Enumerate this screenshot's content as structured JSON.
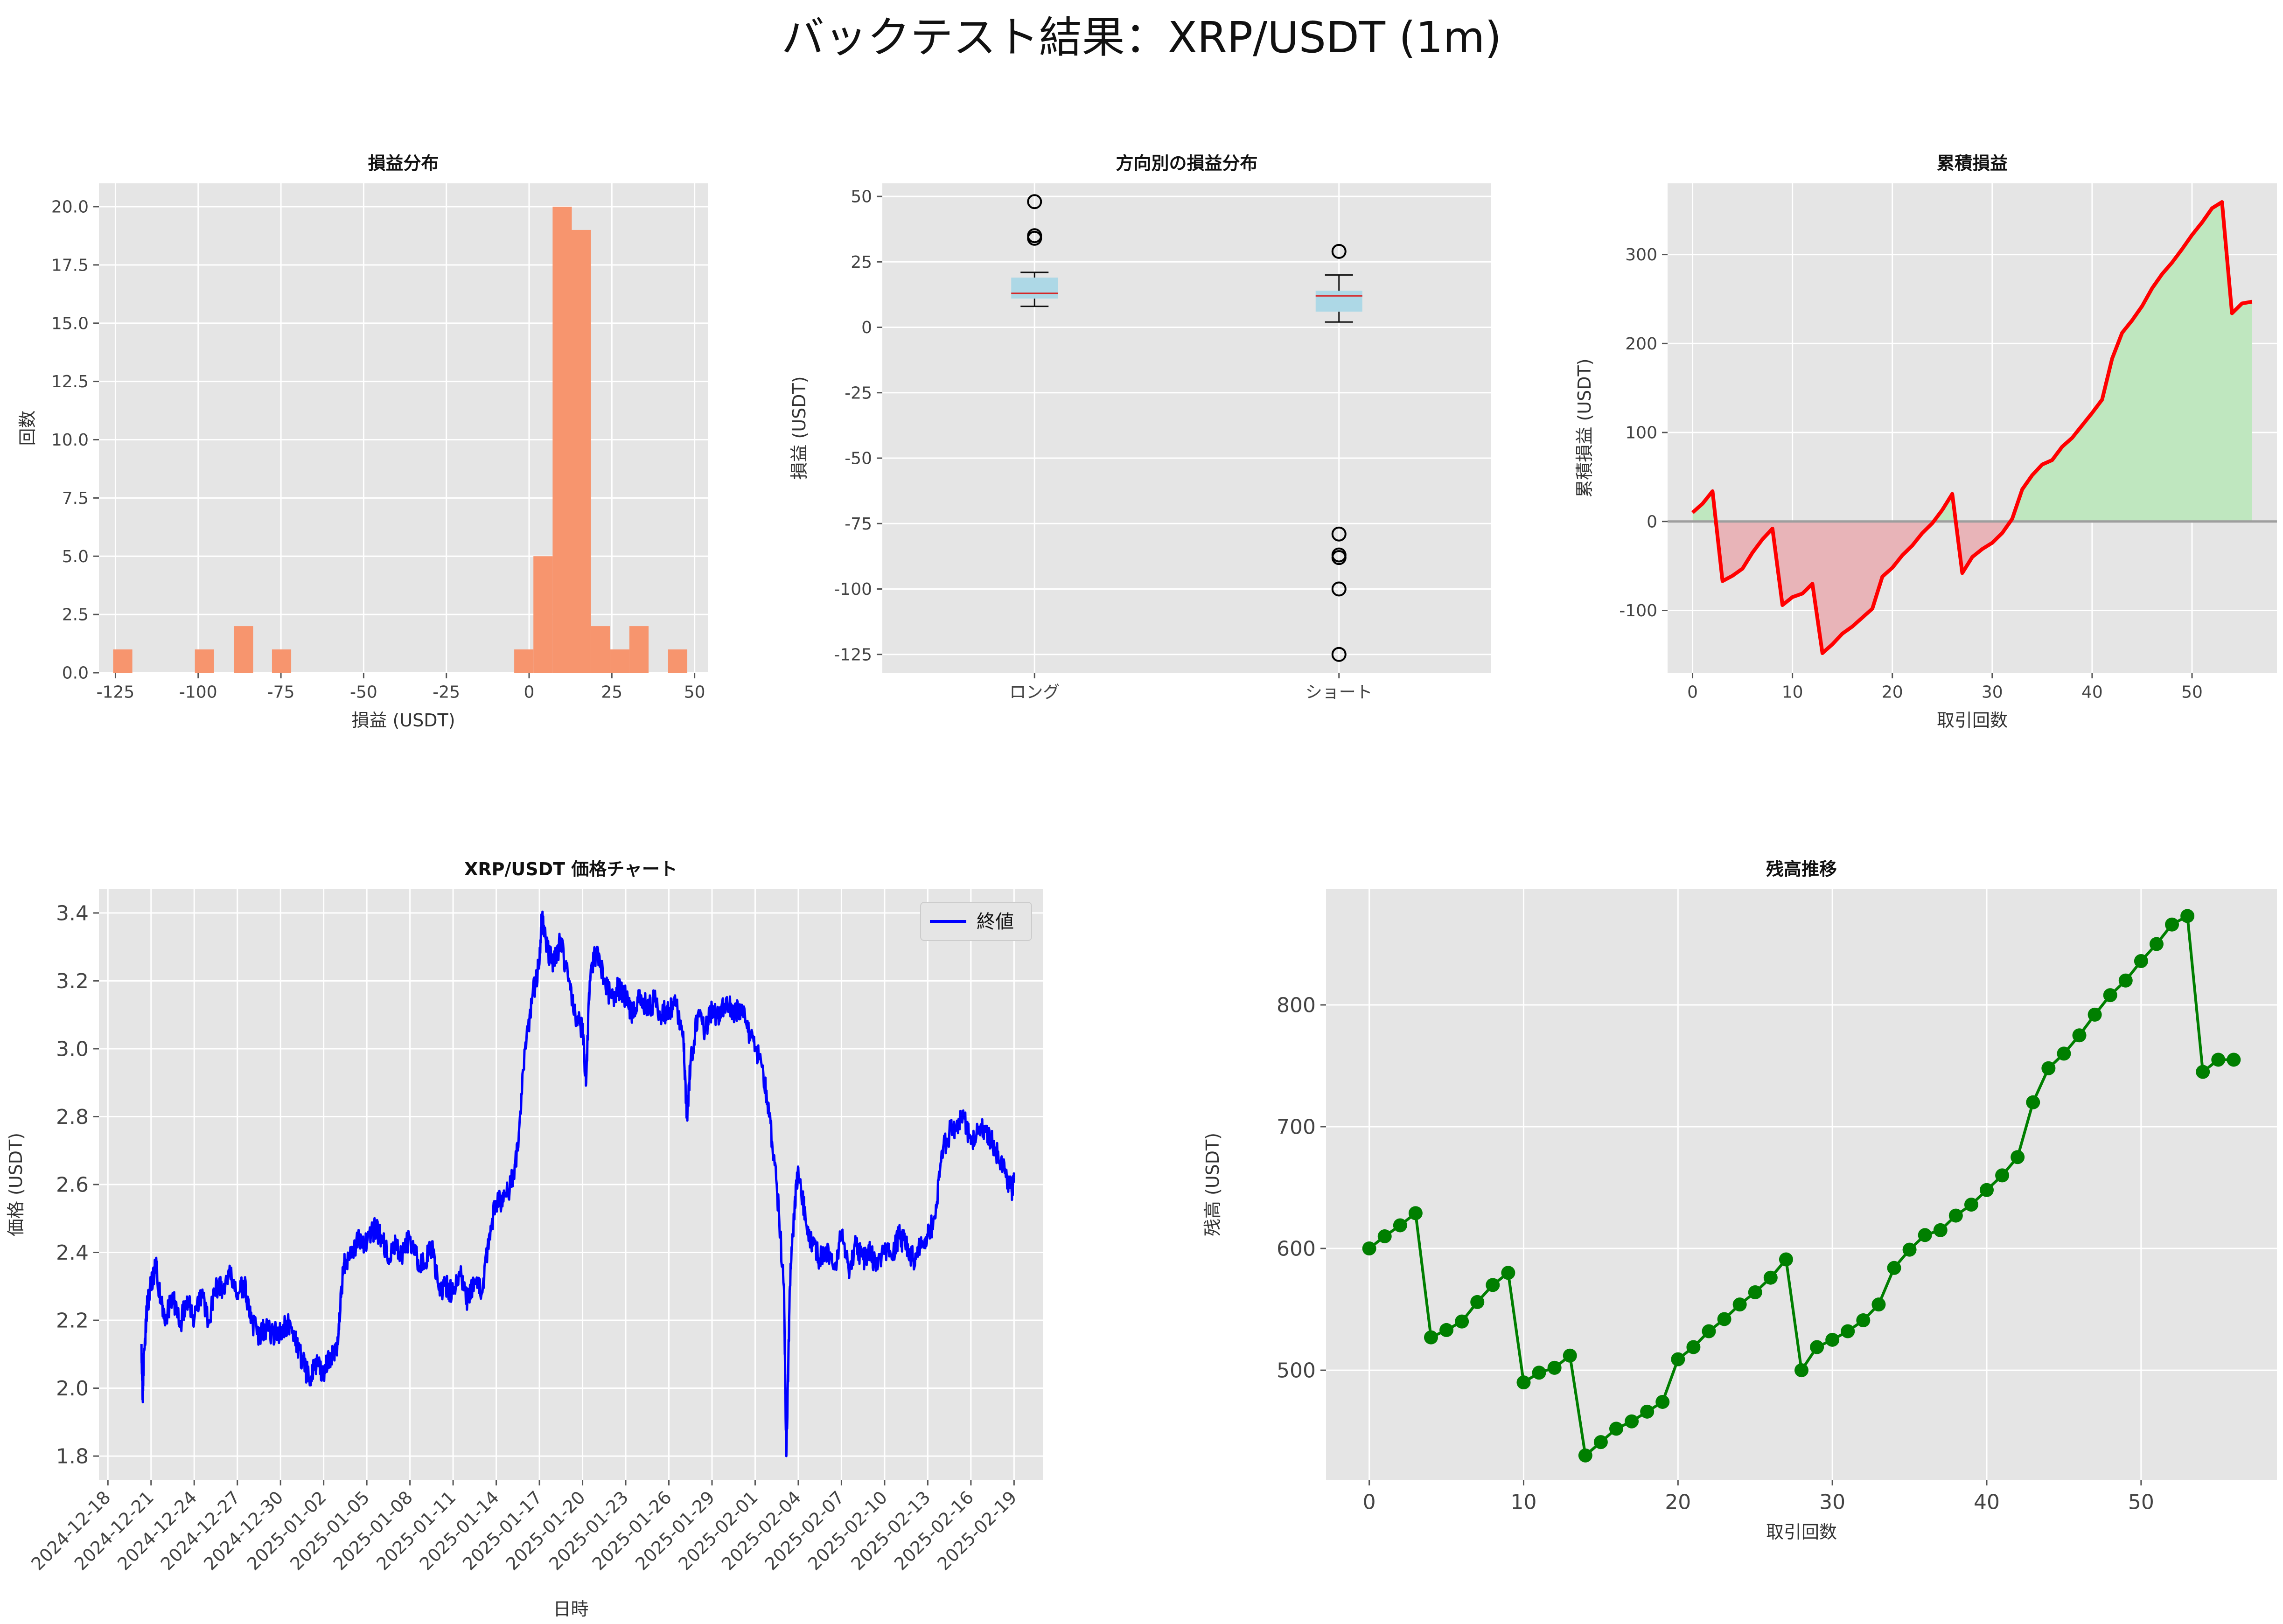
{
  "suptitle": "バックテスト結果：XRP/USDT (1m)",
  "colors": {
    "panel_bg": "#e5e5e5",
    "grid": "#ffffff",
    "hist": "#f7956e",
    "box_fill": "#add8e6",
    "median": "#d62728",
    "cum_line": "#ff0000",
    "fill_neg": "#e8b4b8",
    "fill_pos": "#bfe7bf",
    "zero_line": "#9e9e9e",
    "price_line": "#0000ff",
    "balance": "#007f00"
  },
  "chart_data": [
    {
      "id": "hist",
      "type": "bar",
      "title": "損益分布",
      "xlabel": "損益 (USDT)",
      "ylabel": "回数",
      "xlim": [
        -130,
        54
      ],
      "ylim": [
        0,
        21
      ],
      "xticks": [
        -125,
        -100,
        -75,
        -50,
        -25,
        0,
        25,
        50
      ],
      "yticks": [
        0.0,
        2.5,
        5.0,
        7.5,
        10.0,
        12.5,
        15.0,
        17.5,
        20.0
      ],
      "bins": [
        {
          "x0": -125.7,
          "x1": -119.9,
          "count": 1
        },
        {
          "x0": -101.0,
          "x1": -95.2,
          "count": 1
        },
        {
          "x0": -89.2,
          "x1": -83.4,
          "count": 2
        },
        {
          "x0": -77.7,
          "x1": -71.9,
          "count": 1
        },
        {
          "x0": -4.5,
          "x1": 1.3,
          "count": 1
        },
        {
          "x0": 1.3,
          "x1": 7.1,
          "count": 5
        },
        {
          "x0": 7.1,
          "x1": 12.9,
          "count": 20
        },
        {
          "x0": 12.9,
          "x1": 18.7,
          "count": 19
        },
        {
          "x0": 18.7,
          "x1": 24.5,
          "count": 2
        },
        {
          "x0": 24.5,
          "x1": 30.3,
          "count": 1
        },
        {
          "x0": 30.3,
          "x1": 36.1,
          "count": 2
        },
        {
          "x0": 42.0,
          "x1": 47.8,
          "count": 1
        }
      ]
    },
    {
      "id": "box",
      "type": "box",
      "title": "方向別の損益分布",
      "xlabel": "",
      "ylabel": "損益 (USDT)",
      "ylim": [
        -132,
        55
      ],
      "yticks": [
        -125,
        -100,
        -75,
        -50,
        -25,
        0,
        25,
        50
      ],
      "categories": [
        "ロング",
        "ショート"
      ],
      "boxes": [
        {
          "whislo": 8,
          "q1": 11,
          "med": 13,
          "q3": 19,
          "whishi": 21,
          "fliers": [
            48,
            35,
            34
          ]
        },
        {
          "whislo": 2,
          "q1": 6,
          "med": 12,
          "q3": 14,
          "whishi": 20,
          "fliers": [
            29,
            -79,
            -87,
            -88,
            -100,
            -125
          ]
        }
      ]
    },
    {
      "id": "cum",
      "type": "area",
      "title": "累積損益",
      "xlabel": "取引回数",
      "ylabel": "累積損益 (USDT)",
      "xlim": [
        -2.5,
        58.5
      ],
      "ylim": [
        -170,
        380
      ],
      "xticks": [
        0,
        10,
        20,
        30,
        40,
        50
      ],
      "yticks": [
        -100,
        0,
        100,
        200,
        300
      ],
      "y": [
        10,
        20,
        34,
        -67,
        -61,
        -53,
        -35,
        -20,
        -8,
        -94,
        -85,
        -81,
        -70,
        -148,
        -138,
        -126,
        -118,
        -108,
        -98,
        -62,
        -52,
        -38,
        -27,
        -13,
        -2,
        13,
        31,
        -58,
        -40,
        -31,
        -24,
        -13,
        3,
        36,
        52,
        64,
        69,
        84,
        94,
        108,
        122,
        137,
        183,
        212,
        226,
        242,
        262,
        278,
        291,
        306,
        322,
        336,
        352,
        359,
        234,
        245,
        247
      ]
    },
    {
      "id": "price",
      "type": "line",
      "title": "XRP/USDT 価格チャート",
      "xlabel": "日時",
      "ylabel": "価格 (USDT)",
      "legend": "終値",
      "legend_loc": "upper right",
      "xlim": [
        "2024-12-17T09:00",
        "2025-02-21T00:00"
      ],
      "ylim": [
        1.73,
        3.47
      ],
      "xticks": [
        "2024-12-18",
        "2024-12-21",
        "2024-12-24",
        "2024-12-27",
        "2024-12-30",
        "2025-01-02",
        "2025-01-05",
        "2025-01-08",
        "2025-01-11",
        "2025-01-14",
        "2025-01-17",
        "2025-01-20",
        "2025-01-23",
        "2025-01-26",
        "2025-01-29",
        "2025-02-01",
        "2025-02-04",
        "2025-02-07",
        "2025-02-10",
        "2025-02-13",
        "2025-02-16",
        "2025-02-19"
      ],
      "yticks": [
        1.8,
        2.0,
        2.2,
        2.4,
        2.6,
        2.8,
        3.0,
        3.2,
        3.4
      ],
      "points": [
        [
          "2024-12-20T08:00",
          2.13
        ],
        [
          "2024-12-20T10:00",
          1.97
        ],
        [
          "2024-12-20T12:00",
          2.1
        ],
        [
          "2024-12-20T18:00",
          2.25
        ],
        [
          "2024-12-21T00:00",
          2.3
        ],
        [
          "2024-12-21T08:00",
          2.37
        ],
        [
          "2024-12-21T16:00",
          2.25
        ],
        [
          "2024-12-22T00:00",
          2.2
        ],
        [
          "2024-12-22T12:00",
          2.28
        ],
        [
          "2024-12-23T00:00",
          2.18
        ],
        [
          "2024-12-23T12:00",
          2.27
        ],
        [
          "2024-12-24T00:00",
          2.2
        ],
        [
          "2024-12-24T12:00",
          2.28
        ],
        [
          "2024-12-25T00:00",
          2.2
        ],
        [
          "2024-12-25T12:00",
          2.3
        ],
        [
          "2024-12-26T00:00",
          2.29
        ],
        [
          "2024-12-26T12:00",
          2.33
        ],
        [
          "2024-12-27T00:00",
          2.28
        ],
        [
          "2024-12-27T12:00",
          2.3
        ],
        [
          "2024-12-28T00:00",
          2.2
        ],
        [
          "2024-12-28T12:00",
          2.15
        ],
        [
          "2024-12-29T00:00",
          2.18
        ],
        [
          "2024-12-29T12:00",
          2.16
        ],
        [
          "2024-12-30T00:00",
          2.17
        ],
        [
          "2024-12-30T12:00",
          2.19
        ],
        [
          "2024-12-31T00:00",
          2.15
        ],
        [
          "2024-12-31T12:00",
          2.08
        ],
        [
          "2025-01-01T00:00",
          2.03
        ],
        [
          "2025-01-01T12:00",
          2.07
        ],
        [
          "2025-01-02T00:00",
          2.04
        ],
        [
          "2025-01-02T12:00",
          2.1
        ],
        [
          "2025-01-03T00:00",
          2.13
        ],
        [
          "2025-01-03T06:00",
          2.3
        ],
        [
          "2025-01-03T12:00",
          2.38
        ],
        [
          "2025-01-04T00:00",
          2.4
        ],
        [
          "2025-01-04T12:00",
          2.44
        ],
        [
          "2025-01-05T00:00",
          2.42
        ],
        [
          "2025-01-05T12:00",
          2.47
        ],
        [
          "2025-01-06T00:00",
          2.45
        ],
        [
          "2025-01-06T12:00",
          2.38
        ],
        [
          "2025-01-07T00:00",
          2.42
        ],
        [
          "2025-01-07T12:00",
          2.4
        ],
        [
          "2025-01-08T00:00",
          2.44
        ],
        [
          "2025-01-08T12:00",
          2.38
        ],
        [
          "2025-01-09T00:00",
          2.36
        ],
        [
          "2025-01-09T12:00",
          2.42
        ],
        [
          "2025-01-10T00:00",
          2.29
        ],
        [
          "2025-01-10T12:00",
          2.3
        ],
        [
          "2025-01-11T00:00",
          2.28
        ],
        [
          "2025-01-11T12:00",
          2.33
        ],
        [
          "2025-01-12T00:00",
          2.26
        ],
        [
          "2025-01-12T12:00",
          2.32
        ],
        [
          "2025-01-13T00:00",
          2.28
        ],
        [
          "2025-01-13T12:00",
          2.45
        ],
        [
          "2025-01-14T00:00",
          2.55
        ],
        [
          "2025-01-14T12:00",
          2.55
        ],
        [
          "2025-01-15T00:00",
          2.6
        ],
        [
          "2025-01-15T12:00",
          2.7
        ],
        [
          "2025-01-16T00:00",
          3.0
        ],
        [
          "2025-01-16T12:00",
          3.15
        ],
        [
          "2025-01-17T00:00",
          3.25
        ],
        [
          "2025-01-17T04:00",
          3.39
        ],
        [
          "2025-01-17T12:00",
          3.3
        ],
        [
          "2025-01-18T00:00",
          3.25
        ],
        [
          "2025-01-18T12:00",
          3.32
        ],
        [
          "2025-01-19T00:00",
          3.2
        ],
        [
          "2025-01-19T12:00",
          3.1
        ],
        [
          "2025-01-20T00:00",
          3.05
        ],
        [
          "2025-01-20T06:00",
          2.9
        ],
        [
          "2025-01-20T12:00",
          3.2
        ],
        [
          "2025-01-21T00:00",
          3.3
        ],
        [
          "2025-01-21T12:00",
          3.2
        ],
        [
          "2025-01-22T00:00",
          3.15
        ],
        [
          "2025-01-22T12:00",
          3.18
        ],
        [
          "2025-01-23T00:00",
          3.15
        ],
        [
          "2025-01-23T12:00",
          3.1
        ],
        [
          "2025-01-24T00:00",
          3.15
        ],
        [
          "2025-01-24T12:00",
          3.12
        ],
        [
          "2025-01-25T00:00",
          3.14
        ],
        [
          "2025-01-25T12:00",
          3.1
        ],
        [
          "2025-01-26T00:00",
          3.12
        ],
        [
          "2025-01-26T12:00",
          3.13
        ],
        [
          "2025-01-27T00:00",
          3.05
        ],
        [
          "2025-01-27T06:00",
          2.8
        ],
        [
          "2025-01-27T12:00",
          2.95
        ],
        [
          "2025-01-28T00:00",
          3.1
        ],
        [
          "2025-01-28T12:00",
          3.05
        ],
        [
          "2025-01-29T00:00",
          3.12
        ],
        [
          "2025-01-29T12:00",
          3.08
        ],
        [
          "2025-01-30T00:00",
          3.15
        ],
        [
          "2025-01-30T12:00",
          3.1
        ],
        [
          "2025-01-31T00:00",
          3.12
        ],
        [
          "2025-01-31T12:00",
          3.05
        ],
        [
          "2025-02-01T00:00",
          3.0
        ],
        [
          "2025-02-01T12:00",
          2.95
        ],
        [
          "2025-02-02T00:00",
          2.8
        ],
        [
          "2025-02-02T12:00",
          2.6
        ],
        [
          "2025-02-03T00:00",
          2.3
        ],
        [
          "2025-02-03T04:00",
          1.8
        ],
        [
          "2025-02-03T10:00",
          2.3
        ],
        [
          "2025-02-03T18:00",
          2.55
        ],
        [
          "2025-02-04T00:00",
          2.65
        ],
        [
          "2025-02-04T12:00",
          2.5
        ],
        [
          "2025-02-05T00:00",
          2.42
        ],
        [
          "2025-02-05T12:00",
          2.38
        ],
        [
          "2025-02-06T00:00",
          2.4
        ],
        [
          "2025-02-06T12:00",
          2.35
        ],
        [
          "2025-02-07T00:00",
          2.45
        ],
        [
          "2025-02-07T12:00",
          2.35
        ],
        [
          "2025-02-08T00:00",
          2.42
        ],
        [
          "2025-02-08T12:00",
          2.38
        ],
        [
          "2025-02-09T00:00",
          2.4
        ],
        [
          "2025-02-09T12:00",
          2.35
        ],
        [
          "2025-02-10T00:00",
          2.42
        ],
        [
          "2025-02-10T12:00",
          2.38
        ],
        [
          "2025-02-11T00:00",
          2.45
        ],
        [
          "2025-02-11T12:00",
          2.42
        ],
        [
          "2025-02-12T00:00",
          2.38
        ],
        [
          "2025-02-12T12:00",
          2.42
        ],
        [
          "2025-02-13T00:00",
          2.45
        ],
        [
          "2025-02-13T12:00",
          2.5
        ],
        [
          "2025-02-14T00:00",
          2.7
        ],
        [
          "2025-02-14T12:00",
          2.75
        ],
        [
          "2025-02-15T00:00",
          2.78
        ],
        [
          "2025-02-15T12:00",
          2.8
        ],
        [
          "2025-02-16T00:00",
          2.72
        ],
        [
          "2025-02-16T12:00",
          2.75
        ],
        [
          "2025-02-17T00:00",
          2.77
        ],
        [
          "2025-02-17T12:00",
          2.72
        ],
        [
          "2025-02-18T00:00",
          2.67
        ],
        [
          "2025-02-18T12:00",
          2.62
        ],
        [
          "2025-02-18T20:00",
          2.58
        ],
        [
          "2025-02-19T00:00",
          2.62
        ]
      ]
    },
    {
      "id": "balance",
      "type": "line",
      "title": "残高推移",
      "xlabel": "取引回数",
      "ylabel": "残高 (USDT)",
      "xlim": [
        -2.8,
        58.8
      ],
      "ylim": [
        410,
        895
      ],
      "xticks": [
        0,
        10,
        20,
        30,
        40,
        50
      ],
      "yticks": [
        500,
        600,
        700,
        800
      ],
      "y": [
        600,
        610,
        619,
        629,
        527,
        533,
        540,
        556,
        570,
        580,
        490,
        498,
        502,
        512,
        430,
        441,
        452,
        458,
        466,
        474,
        509,
        519,
        532,
        542,
        554,
        564,
        576,
        591,
        500,
        519,
        525,
        532,
        541,
        554,
        584,
        599,
        611,
        615,
        627,
        636,
        648,
        660,
        675,
        720,
        748,
        760,
        775,
        792,
        808,
        820,
        836,
        850,
        866,
        873,
        745,
        755,
        755
      ]
    }
  ]
}
